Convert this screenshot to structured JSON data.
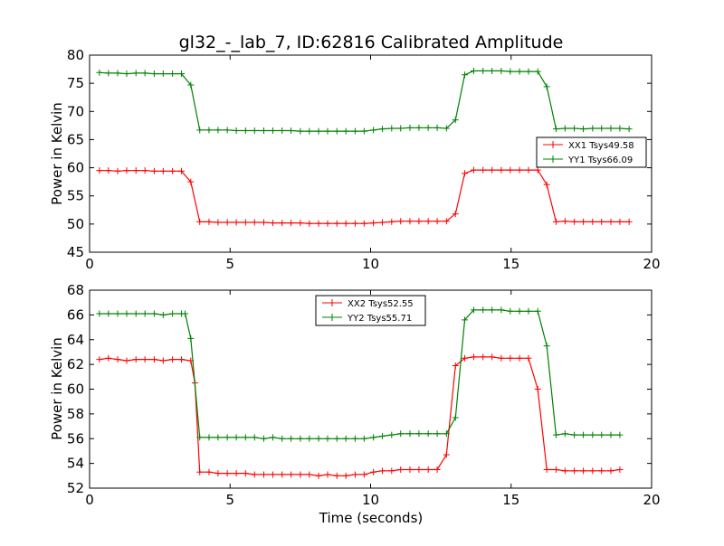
{
  "chart_data": [
    {
      "type": "line",
      "title": "gl32_-_lab_7, ID:62816 Calibrated Amplitude",
      "xlabel": "",
      "ylabel": "Power in Kelvin",
      "xlim": [
        0,
        20
      ],
      "ylim": [
        45,
        80
      ],
      "xticks": [
        0,
        5,
        10,
        15,
        20
      ],
      "yticks": [
        45,
        50,
        55,
        60,
        65,
        70,
        75,
        80
      ],
      "grid": false,
      "legend": "center-right",
      "x": [
        0.35,
        0.67,
        1.0,
        1.32,
        1.65,
        1.97,
        2.3,
        2.62,
        2.95,
        3.27,
        3.6,
        3.92,
        4.25,
        4.57,
        4.9,
        5.22,
        5.55,
        5.87,
        6.2,
        6.52,
        6.85,
        7.17,
        7.5,
        7.82,
        8.15,
        8.47,
        8.8,
        9.12,
        9.45,
        9.77,
        10.1,
        10.42,
        10.75,
        11.07,
        11.4,
        11.72,
        12.05,
        12.37,
        12.7,
        13.02,
        13.35,
        13.67,
        14.0,
        14.32,
        14.65,
        14.97,
        15.3,
        15.62,
        15.95,
        16.27,
        16.6,
        16.92,
        17.25,
        17.57,
        17.9,
        18.22,
        18.55,
        18.87,
        19.2
      ],
      "series": [
        {
          "name": "XX1 Tsys49.58",
          "color": "#ff0000",
          "values": [
            59.5,
            59.5,
            59.4,
            59.5,
            59.5,
            59.5,
            59.4,
            59.4,
            59.4,
            59.4,
            57.5,
            50.4,
            50.4,
            50.3,
            50.3,
            50.3,
            50.3,
            50.3,
            50.3,
            50.2,
            50.2,
            50.2,
            50.2,
            50.1,
            50.1,
            50.1,
            50.1,
            50.1,
            50.1,
            50.1,
            50.2,
            50.3,
            50.4,
            50.5,
            50.5,
            50.5,
            50.5,
            50.5,
            50.5,
            51.8,
            59.0,
            59.6,
            59.6,
            59.6,
            59.6,
            59.6,
            59.6,
            59.6,
            59.6,
            57.0,
            50.4,
            50.5,
            50.4,
            50.4,
            50.4,
            50.4,
            50.4,
            50.4,
            50.4
          ]
        },
        {
          "name": "YY1 Tsys66.09",
          "color": "#008000",
          "values": [
            76.9,
            76.8,
            76.8,
            76.7,
            76.8,
            76.8,
            76.7,
            76.7,
            76.7,
            76.7,
            74.7,
            66.7,
            66.7,
            66.7,
            66.7,
            66.6,
            66.6,
            66.6,
            66.6,
            66.6,
            66.6,
            66.6,
            66.5,
            66.5,
            66.5,
            66.5,
            66.5,
            66.5,
            66.5,
            66.5,
            66.7,
            66.9,
            67.0,
            67.0,
            67.1,
            67.1,
            67.1,
            67.1,
            67.0,
            68.5,
            76.5,
            77.2,
            77.2,
            77.2,
            77.2,
            77.1,
            77.1,
            77.1,
            77.1,
            74.4,
            66.9,
            67.0,
            67.0,
            66.9,
            67.0,
            67.0,
            67.0,
            67.0,
            66.9
          ]
        }
      ]
    },
    {
      "type": "line",
      "title": "",
      "xlabel": "Time (seconds)",
      "ylabel": "Power in Kelvin",
      "xlim": [
        0,
        20
      ],
      "ylim": [
        52,
        68
      ],
      "xticks": [
        0,
        5,
        10,
        15,
        20
      ],
      "yticks": [
        52,
        54,
        56,
        58,
        60,
        62,
        64,
        66,
        68
      ],
      "grid": false,
      "legend": "upper-center",
      "x": [
        0.35,
        0.67,
        1.0,
        1.32,
        1.65,
        1.97,
        2.3,
        2.62,
        2.95,
        3.27,
        3.6,
        3.92,
        4.25,
        4.57,
        4.9,
        5.22,
        5.55,
        5.87,
        6.2,
        6.52,
        6.85,
        7.17,
        7.5,
        7.82,
        8.15,
        8.47,
        8.8,
        9.12,
        9.45,
        9.77,
        10.1,
        10.42,
        10.75,
        11.07,
        11.4,
        11.72,
        12.05,
        12.37,
        12.7,
        13.02,
        13.35,
        13.67,
        14.0,
        14.32,
        14.65,
        14.97,
        15.3,
        15.62,
        15.95,
        16.27,
        16.6,
        16.92,
        17.25,
        17.57,
        17.9,
        18.22,
        18.55,
        18.87,
        19.2
      ],
      "series": [
        {
          "name": "XX2 Tsys52.55",
          "color": "#ff0000",
          "values": [
            62.4,
            62.5,
            62.4,
            62.3,
            62.4,
            62.4,
            62.4,
            62.3,
            62.4,
            62.4,
            62.3,
            60.5,
            53.3,
            53.3,
            53.2,
            53.2,
            53.2,
            53.2,
            53.1,
            53.1,
            53.1,
            53.1,
            53.1,
            53.1,
            53.1,
            53.0,
            53.1,
            53.0,
            53.0,
            53.1,
            53.1,
            53.3,
            53.4,
            53.4,
            53.5,
            53.5,
            53.5,
            53.5,
            53.5,
            54.7,
            61.9,
            62.5,
            62.6,
            62.6,
            62.6,
            62.5,
            62.5,
            62.5,
            62.5,
            60.0,
            53.5,
            53.5,
            53.4,
            53.4,
            53.4,
            53.4,
            53.4,
            53.4,
            53.5
          ],
          "x_override": [
            0.35,
            0.67,
            1.0,
            1.32,
            1.65,
            1.97,
            2.3,
            2.62,
            2.95,
            3.27,
            3.6,
            3.75,
            3.92,
            4.25,
            4.57,
            4.9,
            5.22,
            5.55,
            5.87,
            6.2,
            6.52,
            6.85,
            7.17,
            7.5,
            7.82,
            8.15,
            8.47,
            8.8,
            9.12,
            9.45,
            9.77,
            10.1,
            10.42,
            10.75,
            11.07,
            11.4,
            11.72,
            12.05,
            12.37,
            12.7,
            13.02,
            13.35,
            13.67,
            14.0,
            14.32,
            14.65,
            14.97,
            15.3,
            15.62,
            15.95,
            16.27,
            16.6,
            16.92,
            17.25,
            17.57,
            17.9,
            18.22,
            18.55,
            18.87
          ]
        },
        {
          "name": "YY2 Tsys55.71",
          "color": "#008000",
          "values": [
            66.1,
            66.1,
            66.1,
            66.1,
            66.1,
            66.1,
            66.1,
            66.0,
            66.1,
            66.1,
            66.1,
            64.1,
            56.1,
            56.1,
            56.1,
            56.1,
            56.1,
            56.1,
            56.1,
            56.0,
            56.1,
            56.0,
            56.0,
            56.0,
            56.0,
            56.0,
            56.0,
            56.0,
            56.0,
            56.0,
            56.0,
            56.1,
            56.2,
            56.3,
            56.4,
            56.4,
            56.4,
            56.4,
            56.4,
            56.4,
            57.7,
            65.6,
            66.4,
            66.4,
            66.4,
            66.4,
            66.3,
            66.3,
            66.3,
            66.3,
            63.5,
            56.3,
            56.4,
            56.3,
            56.3,
            56.3,
            56.3,
            56.3,
            56.3
          ],
          "x_override": [
            0.35,
            0.67,
            1.0,
            1.32,
            1.65,
            1.97,
            2.3,
            2.62,
            2.95,
            3.27,
            3.4,
            3.6,
            3.92,
            4.25,
            4.57,
            4.9,
            5.22,
            5.55,
            5.87,
            6.2,
            6.52,
            6.85,
            7.17,
            7.5,
            7.82,
            8.15,
            8.47,
            8.8,
            9.12,
            9.45,
            9.77,
            10.1,
            10.42,
            10.75,
            11.07,
            11.4,
            11.72,
            12.05,
            12.37,
            12.7,
            13.02,
            13.35,
            13.67,
            14.0,
            14.32,
            14.65,
            14.97,
            15.3,
            15.62,
            15.95,
            16.27,
            16.6,
            16.92,
            17.25,
            17.57,
            17.9,
            18.22,
            18.55,
            18.87
          ]
        }
      ]
    }
  ]
}
